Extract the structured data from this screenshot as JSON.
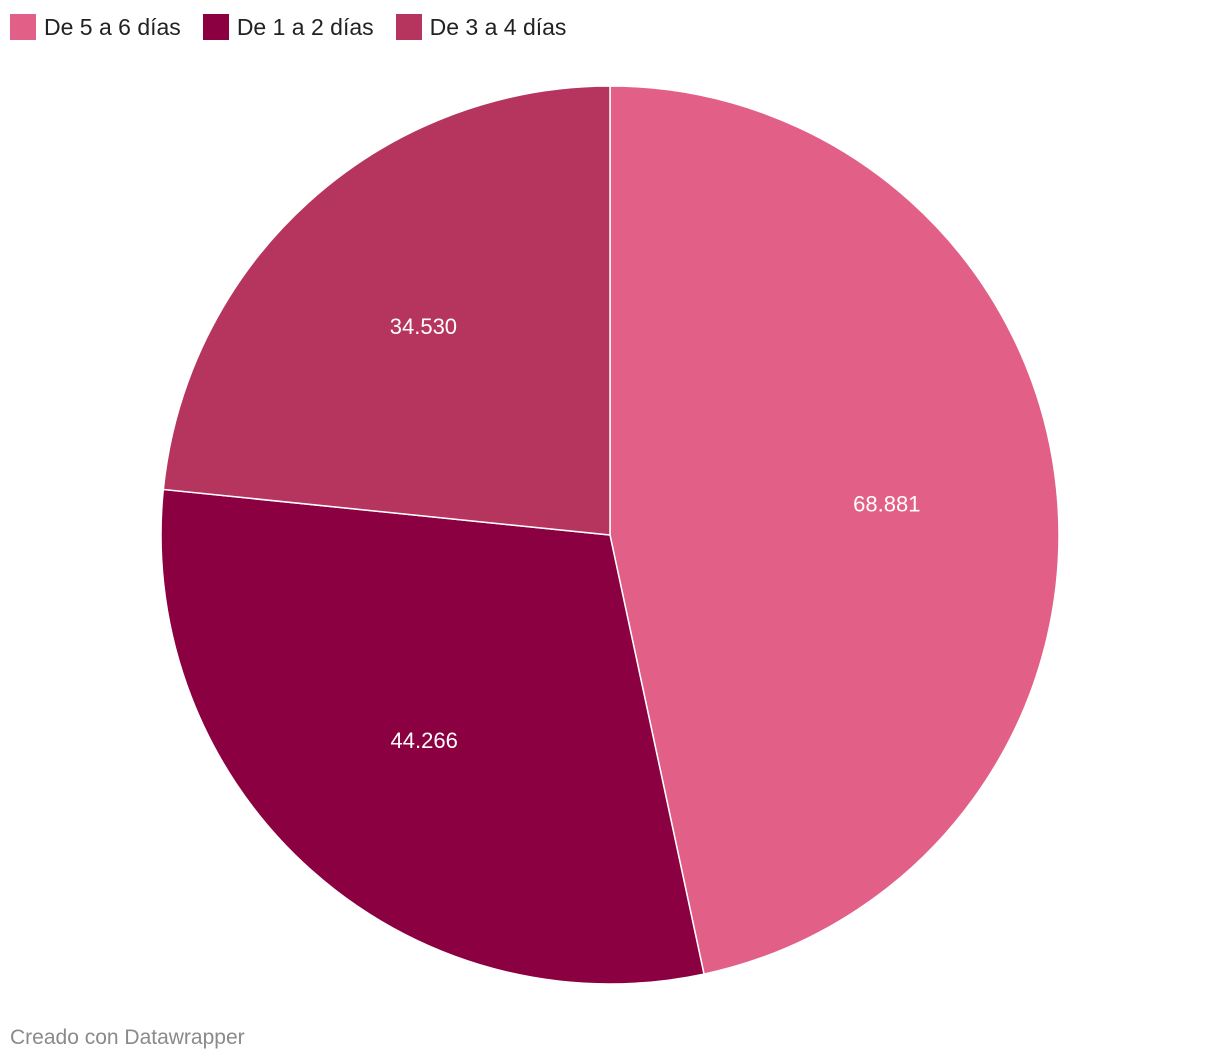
{
  "chart_data": {
    "type": "pie",
    "slices": [
      {
        "label": "De 5 a 6 días",
        "value": 68881,
        "value_label": "68.881",
        "color": "#e26088"
      },
      {
        "label": "De 1 a 2 días",
        "value": 44266,
        "value_label": "44.266",
        "color": "#8b0040"
      },
      {
        "label": "De 3 a 4 días",
        "value": 34530,
        "value_label": "34.530",
        "color": "#b6355f"
      }
    ],
    "legend_position": "top-left",
    "start_angle": "top",
    "direction": "clockwise"
  },
  "legend": {
    "items": [
      {
        "label": "De 5 a 6 días",
        "color": "#e26088"
      },
      {
        "label": "De 1 a 2 días",
        "color": "#8b0040"
      },
      {
        "label": "De 3 a 4 días",
        "color": "#b6355f"
      }
    ]
  },
  "footer": {
    "credit": "Creado con Datawrapper"
  }
}
